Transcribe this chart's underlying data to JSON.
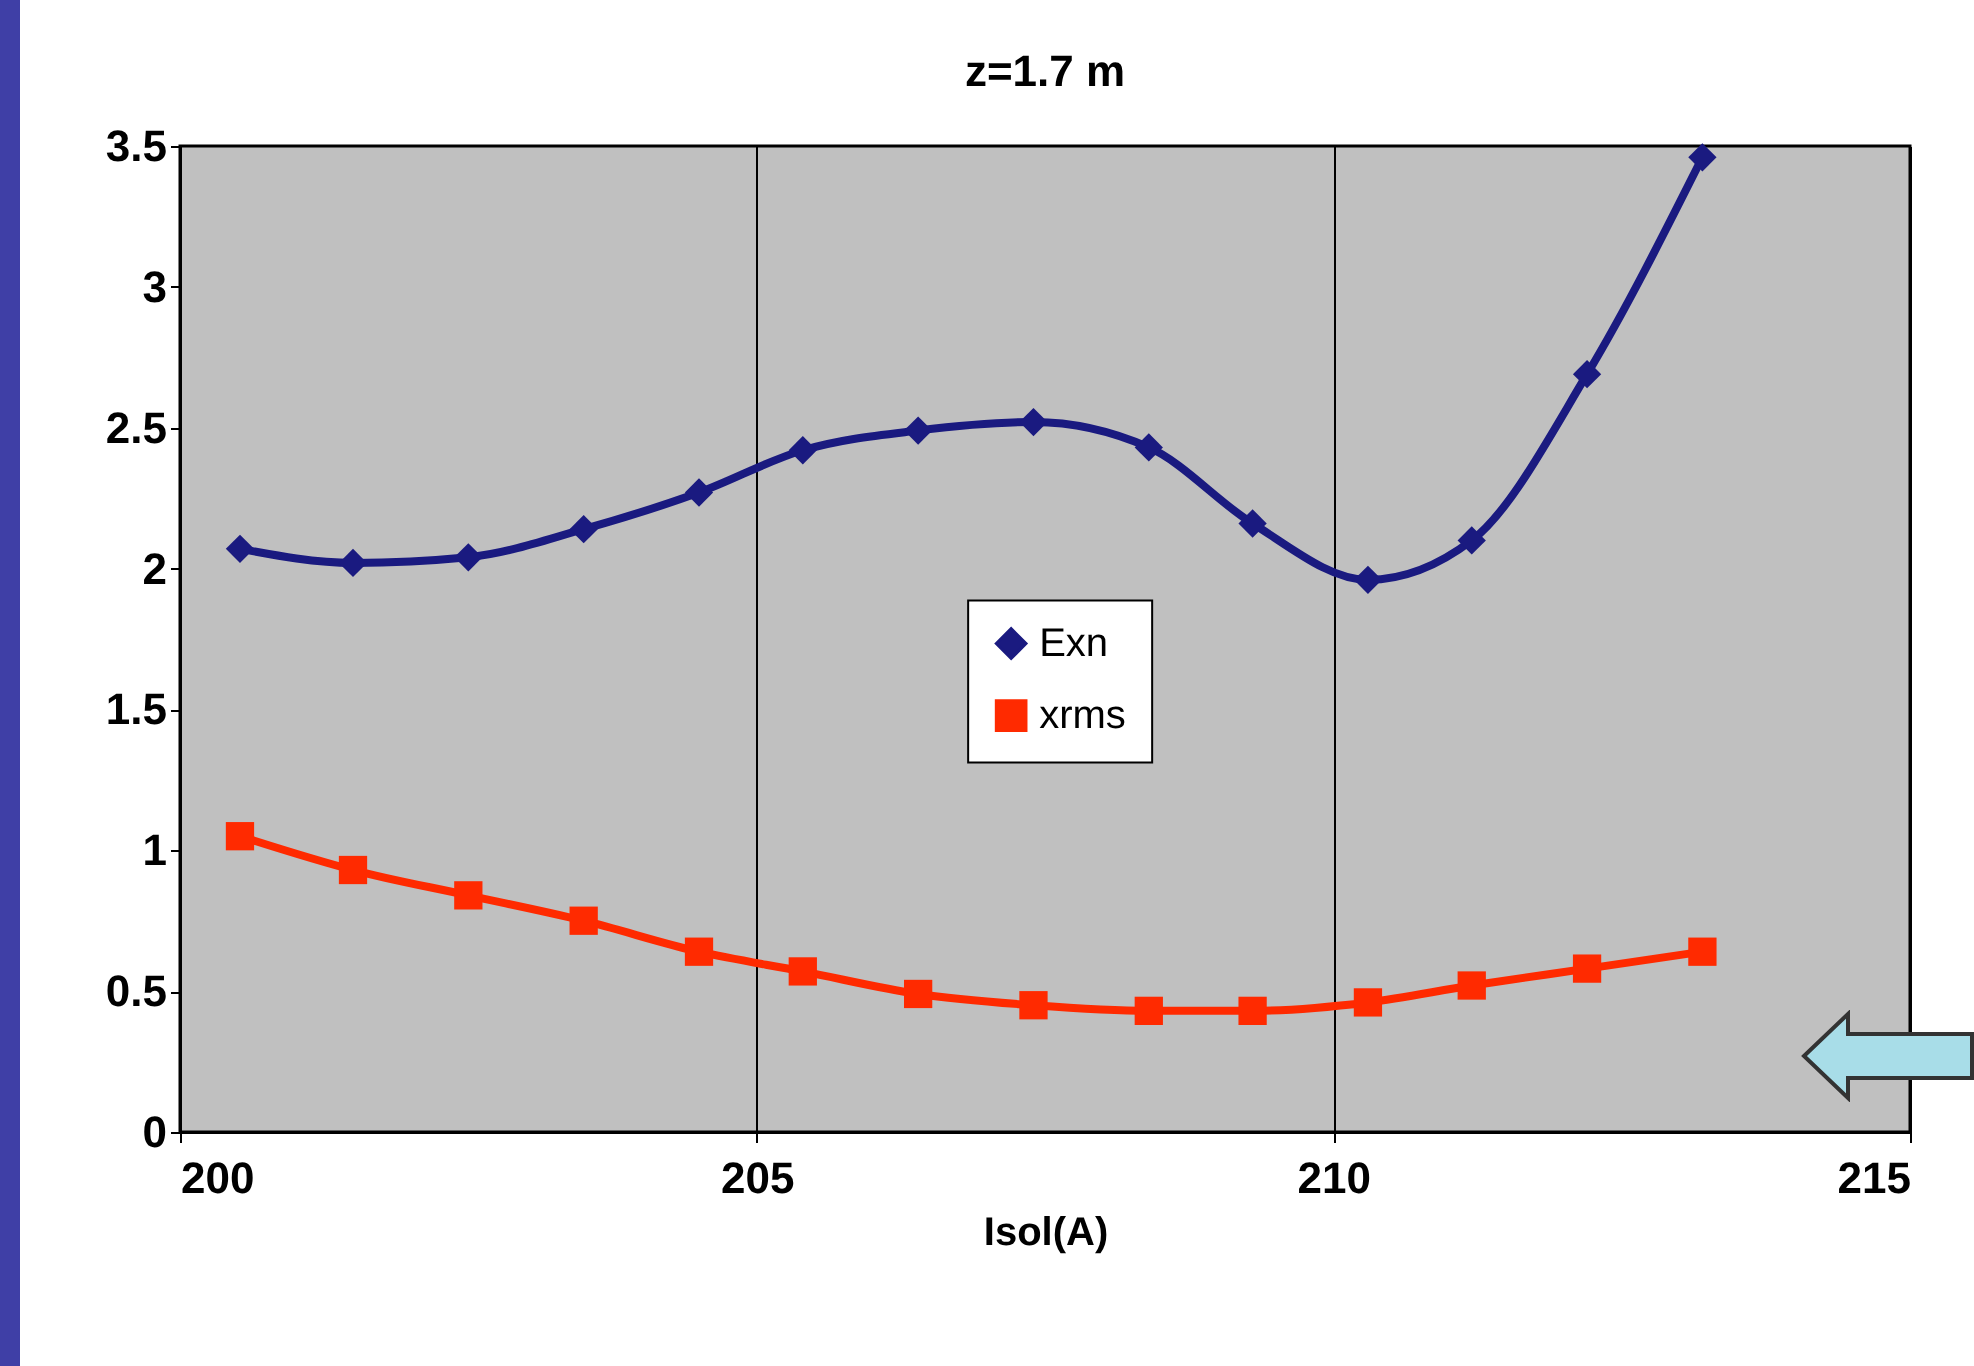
{
  "chart_data": {
    "type": "line",
    "title": "z=1.7 m",
    "xlabel": "Isol(A)",
    "x": [
      200.52,
      201.5,
      202.5,
      203.5,
      204.5,
      205.4,
      206.4,
      207.4,
      208.4,
      209.3,
      210.3,
      211.2,
      212.2,
      213.2
    ],
    "series": [
      {
        "name": "Exn",
        "color": "#1a1a80",
        "marker": "diamond",
        "values": [
          2.07,
          2.02,
          2.04,
          2.14,
          2.27,
          2.42,
          2.49,
          2.52,
          2.43,
          2.16,
          1.96,
          2.1,
          2.69,
          3.46
        ]
      },
      {
        "name": "xrms",
        "color": "#ff2a00",
        "marker": "square",
        "values": [
          1.05,
          0.93,
          0.84,
          0.75,
          0.64,
          0.57,
          0.49,
          0.45,
          0.43,
          0.43,
          0.46,
          0.52,
          0.58,
          0.64
        ]
      }
    ],
    "xlim": [
      200,
      215
    ],
    "xticks": [
      200,
      205,
      210,
      215
    ],
    "ylim": [
      0,
      3.5
    ],
    "yticks": [
      0,
      0.5,
      1,
      1.5,
      2,
      2.5,
      3,
      3.5
    ],
    "grid": "x",
    "legend": "center"
  }
}
